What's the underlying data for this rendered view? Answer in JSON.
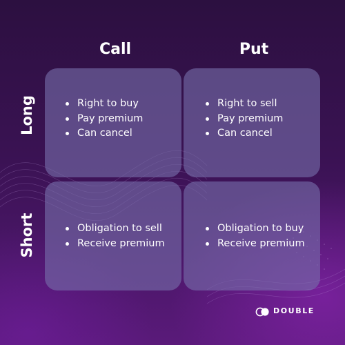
{
  "columns": [
    "Call",
    "Put"
  ],
  "rows": [
    "Long",
    "Short"
  ],
  "cells": {
    "long_call": [
      "Right to buy",
      "Pay premium",
      "Can cancel"
    ],
    "long_put": [
      "Right to sell",
      "Pay premium",
      "Can cancel"
    ],
    "short_call": [
      "Obligation to sell",
      "Receive premium"
    ],
    "short_put": [
      "Obligation to buy",
      "Receive premium"
    ]
  },
  "brand": {
    "name": "DOUBLE",
    "logo_icon": "double-circle-logo-icon"
  },
  "colors": {
    "background_top": "#2c1040",
    "background_bottom": "#5a1a7a",
    "accent_glow": "#9628be",
    "cell_fill": "#766eaa",
    "text": "#ffffff"
  }
}
